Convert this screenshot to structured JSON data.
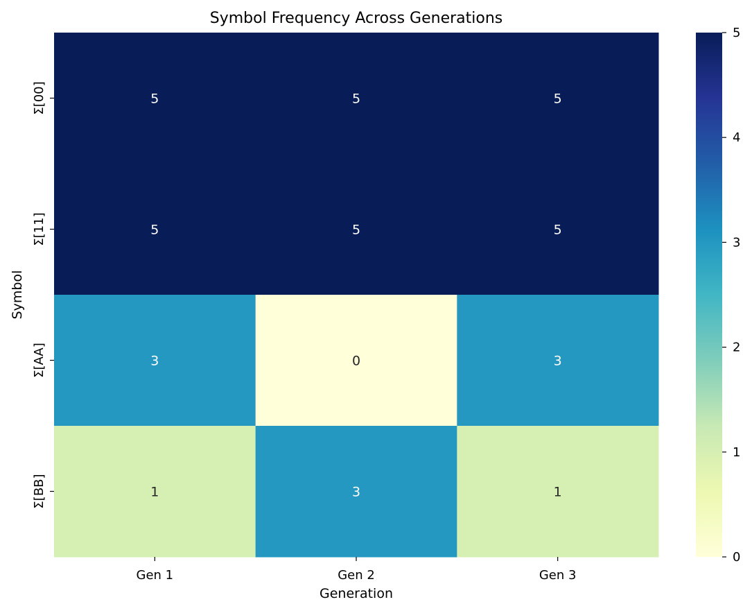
{
  "chart_data": {
    "type": "heatmap",
    "title": "Symbol Frequency Across Generations",
    "xlabel": "Generation",
    "ylabel": "Symbol",
    "x_categories": [
      "Gen 1",
      "Gen 2",
      "Gen 3"
    ],
    "y_categories": [
      "Σ[00]",
      "Σ[11]",
      "Σ[AA]",
      "Σ[BB]"
    ],
    "values": [
      [
        5,
        5,
        5
      ],
      [
        5,
        5,
        5
      ],
      [
        3,
        0,
        3
      ],
      [
        1,
        3,
        1
      ]
    ],
    "annotated": true,
    "colormap": "YlGnBu",
    "vmin": 0,
    "vmax": 5,
    "colorbar_ticks": [
      0,
      1,
      2,
      3,
      4,
      5
    ],
    "colormap_stops": [
      "#ffffd9",
      "#edf8b1",
      "#c7e9b4",
      "#7fcdbb",
      "#41b6c4",
      "#1d91c0",
      "#225ea8",
      "#253494",
      "#081d58"
    ]
  }
}
